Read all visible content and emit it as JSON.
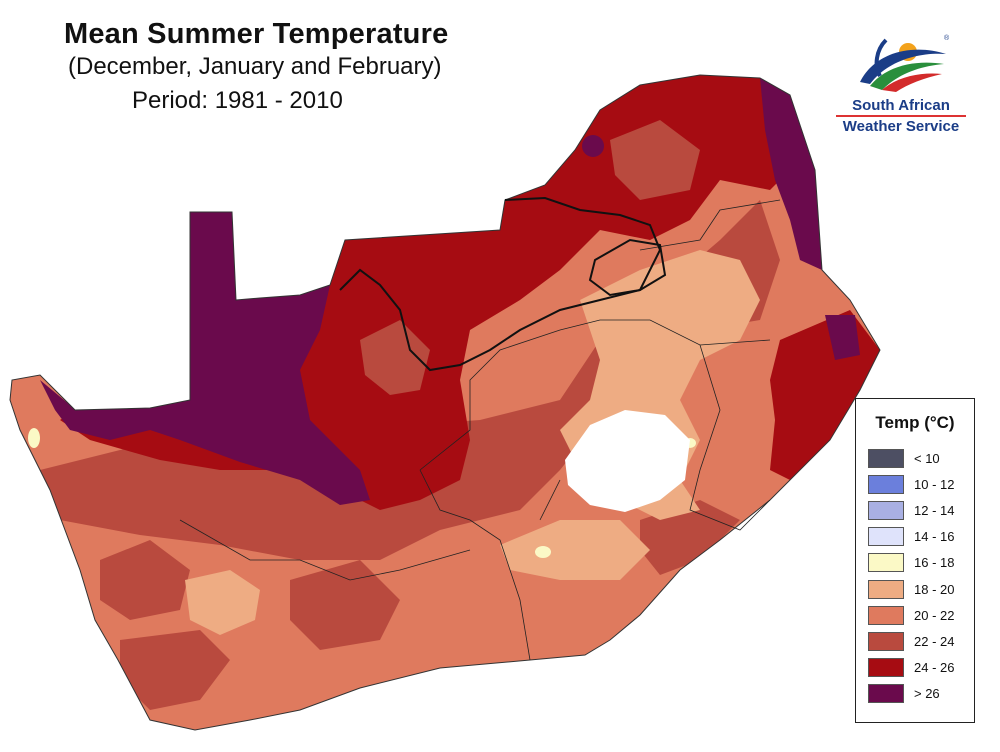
{
  "title": "Mean Summer Temperature",
  "subtitle": "(December, January and February)",
  "period": "Period: 1981 - 2010",
  "logo": {
    "line1": "South African",
    "line2": "Weather Service",
    "reg": "®"
  },
  "legend": {
    "title": "Temp (°C)",
    "items": [
      {
        "label": "< 10",
        "color": "#4d4f63"
      },
      {
        "label": "10 - 12",
        "color": "#6b7fdc"
      },
      {
        "label": "12 - 14",
        "color": "#a9b0e3"
      },
      {
        "label": "14 - 16",
        "color": "#dfe3fb"
      },
      {
        "label": "16 - 18",
        "color": "#fbf9c6"
      },
      {
        "label": "18 - 20",
        "color": "#eeac83"
      },
      {
        "label": "20 - 22",
        "color": "#df7a5e"
      },
      {
        "label": "22 - 24",
        "color": "#b94a3e"
      },
      {
        "label": "24 - 26",
        "color": "#a60c12"
      },
      {
        "label": "> 26",
        "color": "#6a0a4c"
      }
    ]
  }
}
